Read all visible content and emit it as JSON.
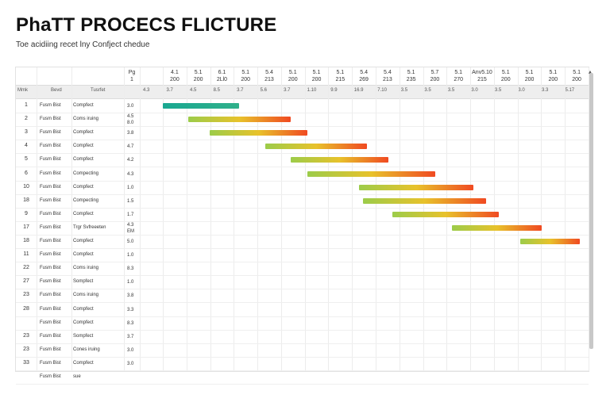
{
  "header": {
    "title": "PhaTT PROCECS FLICTURE",
    "subtitle": "Toe acidiing recet lny Confject chedue"
  },
  "columns": {
    "top_labels": [
      {
        "line1": "Pg",
        "line2": "1"
      },
      {
        "line1": "4.1",
        "line2": "200"
      },
      {
        "line1": "5.1",
        "line2": "200"
      },
      {
        "line1": "6.1",
        "line2": "2Ll0"
      },
      {
        "line1": "5.1",
        "line2": "200"
      },
      {
        "line1": "5.4",
        "line2": "213"
      },
      {
        "line1": "5.1",
        "line2": "200"
      },
      {
        "line1": "5.1",
        "line2": "200"
      },
      {
        "line1": "5.1",
        "line2": "215"
      },
      {
        "line1": "5.4",
        "line2": "269"
      },
      {
        "line1": "5.4",
        "line2": "213"
      },
      {
        "line1": "5.1",
        "line2": "235"
      },
      {
        "line1": "5.7",
        "line2": "200"
      },
      {
        "line1": "5.1",
        "line2": "270"
      },
      {
        "line1": "Anv5.10",
        "line2": "215"
      },
      {
        "line1": "5.1",
        "line2": "200"
      },
      {
        "line1": "5.1",
        "line2": "200"
      },
      {
        "line1": "5.1",
        "line2": "200"
      },
      {
        "line1": "5.1",
        "line2": "200"
      }
    ],
    "sub_labels": [
      "Mmk",
      "Bevd",
      "Tusrfet",
      "4.3",
      "3.7",
      "4.5",
      "8.5",
      "3.7",
      "5.6",
      "3.7",
      "1.10",
      "9.9",
      "16.9",
      "7.10",
      "3.5",
      "3.5",
      "3.5",
      "3.0",
      "3.5",
      "3.0",
      "3.3",
      "5.17"
    ]
  },
  "rows": [
    {
      "num": "1",
      "name": "Fusm Bist",
      "res": "Compfect",
      "dur": "3.0",
      "dur2": ""
    },
    {
      "num": "2",
      "name": "Fusm Bist",
      "res": "Coms iruing",
      "dur": "4.5",
      "dur2": "8.0"
    },
    {
      "num": "3",
      "name": "Fusm Bist",
      "res": "Compfect",
      "dur": "3.8",
      "dur2": ""
    },
    {
      "num": "4",
      "name": "Fusm Bist",
      "res": "Compfect",
      "dur": "4.7",
      "dur2": ""
    },
    {
      "num": "5",
      "name": "Fusm Bist",
      "res": "Compfect",
      "dur": "4.2",
      "dur2": ""
    },
    {
      "num": "6",
      "name": "Fusm Bist",
      "res": "Compecting",
      "dur": "4.3",
      "dur2": ""
    },
    {
      "num": "10",
      "name": "Fusm Bist",
      "res": "Compfect",
      "dur": "1.0",
      "dur2": ""
    },
    {
      "num": "18",
      "name": "Fusm Bist",
      "res": "Compecting",
      "dur": "1.5",
      "dur2": ""
    },
    {
      "num": "9",
      "name": "Fusm Bist",
      "res": "Compfect",
      "dur": "1.7",
      "dur2": ""
    },
    {
      "num": "17",
      "name": "Fusm Bist",
      "res": "Trgr Svfreeeten",
      "dur": "4.3",
      "dur2": "EM"
    },
    {
      "num": "18",
      "name": "Fusm Bist",
      "res": "Compfect",
      "dur": "5.0",
      "dur2": ""
    },
    {
      "num": "11",
      "name": "Fusm Bist",
      "res": "Compfect",
      "dur": "1.0",
      "dur2": ""
    },
    {
      "num": "22",
      "name": "Fusm Bist",
      "res": "Coms iruing",
      "dur": "8.3",
      "dur2": ""
    },
    {
      "num": "27",
      "name": "Fusm Bist",
      "res": "Sompfect",
      "dur": "1.0",
      "dur2": ""
    },
    {
      "num": "23",
      "name": "Fusm Bist",
      "res": "Coms iruing",
      "dur": "3.8",
      "dur2": ""
    },
    {
      "num": "28",
      "name": "Fusm Bist",
      "res": "Compfect",
      "dur": "3.3",
      "dur2": ""
    },
    {
      "num": "",
      "name": "Fusm Bist",
      "res": "Compfect",
      "dur": "8.3",
      "dur2": ""
    },
    {
      "num": "23",
      "name": "Fusm Bist",
      "res": "Sompfect",
      "dur": "3.7",
      "dur2": ""
    },
    {
      "num": "23",
      "name": "Fusm Bist",
      "res": "Cones iruing",
      "dur": "3.0",
      "dur2": ""
    },
    {
      "num": "33",
      "name": "Fusm Bist",
      "res": "Compfect",
      "dur": "3.0",
      "dur2": ""
    },
    {
      "num": "",
      "name": "Fusm Bist",
      "res": "sue",
      "dur": "",
      "dur2": ""
    }
  ],
  "bars": [
    {
      "row": 0,
      "start": 0.0,
      "end": 0.18,
      "colors": [
        "#1aa891",
        "#2fb08a"
      ]
    },
    {
      "row": 1,
      "start": 0.06,
      "end": 0.3,
      "colors": [
        "#9ccc4a",
        "#f04a22"
      ]
    },
    {
      "row": 2,
      "start": 0.11,
      "end": 0.34,
      "colors": [
        "#9ccc4a",
        "#f04a22"
      ]
    },
    {
      "row": 3,
      "start": 0.24,
      "end": 0.48,
      "colors": [
        "#9ccc4a",
        "#f04a22"
      ]
    },
    {
      "row": 4,
      "start": 0.3,
      "end": 0.53,
      "colors": [
        "#9ccc4a",
        "#f04a22"
      ]
    },
    {
      "row": 5,
      "start": 0.34,
      "end": 0.64,
      "colors": [
        "#9ccc4a",
        "#f04a22"
      ]
    },
    {
      "row": 6,
      "start": 0.46,
      "end": 0.73,
      "colors": [
        "#9ccc4a",
        "#f04a22"
      ]
    },
    {
      "row": 7,
      "start": 0.47,
      "end": 0.76,
      "colors": [
        "#9ccc4a",
        "#f04a22"
      ]
    },
    {
      "row": 8,
      "start": 0.54,
      "end": 0.79,
      "colors": [
        "#9ccc4a",
        "#f04a22"
      ]
    },
    {
      "row": 9,
      "start": 0.68,
      "end": 0.89,
      "colors": [
        "#9ccc4a",
        "#f04a22"
      ]
    },
    {
      "row": 10,
      "start": 0.84,
      "end": 0.98,
      "colors": [
        "#9ccc4a",
        "#f04a22"
      ]
    }
  ]
}
